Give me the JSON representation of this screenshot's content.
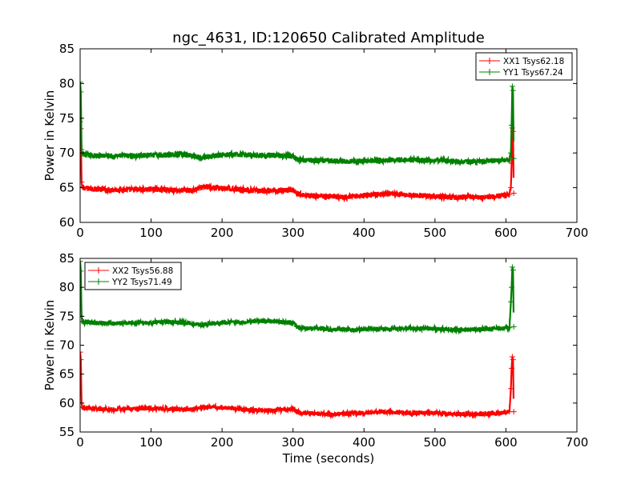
{
  "chart_data": [
    {
      "type": "line",
      "title": "ngc_4631, ID:120650 Calibrated Amplitude",
      "xlabel": "",
      "ylabel": "Power in Kelvin",
      "xlim": [
        0,
        700
      ],
      "ylim": [
        60,
        85
      ],
      "xticks": [
        0,
        100,
        200,
        300,
        400,
        500,
        600,
        700
      ],
      "yticks": [
        60,
        65,
        70,
        75,
        80,
        85
      ],
      "grid": false,
      "legend_position": "top-right",
      "series": [
        {
          "name": "XX1 Tsys62.18",
          "color": "#ff0000",
          "x": [
            0,
            1,
            2,
            3,
            5,
            10,
            20,
            40,
            60,
            80,
            100,
            120,
            140,
            160,
            170,
            180,
            200,
            220,
            240,
            260,
            280,
            300,
            305,
            310,
            330,
            350,
            370,
            390,
            410,
            430,
            450,
            470,
            490,
            510,
            530,
            550,
            570,
            590,
            605,
            607,
            608,
            609,
            610,
            611
          ],
          "y": [
            74.5,
            73.5,
            65.8,
            65.1,
            65.0,
            64.9,
            64.8,
            64.7,
            64.7,
            64.7,
            64.8,
            64.7,
            64.6,
            64.6,
            65.0,
            65.1,
            64.9,
            64.8,
            64.6,
            64.5,
            64.6,
            64.7,
            64.2,
            64.0,
            63.8,
            63.7,
            63.6,
            63.8,
            64.0,
            64.1,
            64.0,
            63.9,
            63.8,
            63.7,
            63.6,
            63.7,
            63.6,
            63.8,
            64.0,
            65.0,
            68.5,
            73.6,
            73.1,
            64.2
          ]
        },
        {
          "name": "YY1 Tsys67.24",
          "color": "#008000",
          "x": [
            0,
            1,
            2,
            3,
            5,
            10,
            20,
            40,
            60,
            80,
            100,
            120,
            140,
            160,
            170,
            180,
            200,
            220,
            240,
            260,
            280,
            300,
            305,
            310,
            330,
            350,
            370,
            390,
            410,
            430,
            450,
            470,
            490,
            510,
            530,
            550,
            570,
            590,
            605,
            607,
            608,
            609,
            610,
            611
          ],
          "y": [
            80.2,
            78.8,
            70.5,
            69.9,
            69.8,
            69.7,
            69.6,
            69.6,
            69.6,
            69.6,
            69.7,
            69.7,
            69.8,
            69.6,
            69.3,
            69.5,
            69.7,
            69.8,
            69.7,
            69.7,
            69.6,
            69.6,
            69.1,
            69.0,
            68.9,
            68.9,
            68.8,
            68.8,
            68.9,
            68.9,
            69.0,
            69.0,
            68.9,
            68.9,
            68.8,
            68.7,
            68.8,
            68.9,
            69.0,
            70.0,
            74.0,
            79.6,
            79.0,
            69.2
          ]
        }
      ]
    },
    {
      "type": "line",
      "title": "",
      "xlabel": "Time (seconds)",
      "ylabel": "Power in Kelvin",
      "xlim": [
        0,
        700
      ],
      "ylim": [
        55,
        85
      ],
      "xticks": [
        0,
        100,
        200,
        300,
        400,
        500,
        600,
        700
      ],
      "yticks": [
        55,
        60,
        65,
        70,
        75,
        80,
        85
      ],
      "grid": false,
      "legend_position": "top-left",
      "series": [
        {
          "name": "XX2 Tsys56.88",
          "color": "#ff0000",
          "x": [
            0,
            1,
            2,
            3,
            5,
            10,
            20,
            40,
            60,
            80,
            100,
            120,
            140,
            160,
            170,
            180,
            200,
            220,
            240,
            260,
            280,
            300,
            305,
            310,
            330,
            350,
            370,
            390,
            410,
            430,
            450,
            470,
            490,
            510,
            530,
            550,
            570,
            590,
            605,
            607,
            608,
            609,
            610,
            611
          ],
          "y": [
            68.8,
            67.5,
            60.0,
            59.3,
            59.2,
            59.1,
            59.0,
            58.9,
            58.9,
            59.0,
            59.1,
            59.0,
            58.9,
            58.9,
            59.2,
            59.3,
            59.2,
            59.0,
            58.8,
            58.7,
            58.8,
            59.0,
            58.5,
            58.3,
            58.2,
            58.1,
            58.1,
            58.2,
            58.4,
            58.5,
            58.4,
            58.3,
            58.3,
            58.2,
            58.1,
            58.1,
            58.1,
            58.2,
            58.5,
            62.5,
            66.0,
            68.0,
            67.5,
            58.5
          ]
        },
        {
          "name": "YY2 Tsys71.49",
          "color": "#008000",
          "x": [
            0,
            1,
            2,
            3,
            5,
            10,
            20,
            40,
            60,
            80,
            100,
            120,
            140,
            160,
            170,
            180,
            200,
            220,
            240,
            260,
            280,
            300,
            305,
            310,
            330,
            350,
            370,
            390,
            410,
            430,
            450,
            470,
            490,
            510,
            530,
            550,
            570,
            590,
            605,
            607,
            608,
            609,
            610,
            611
          ],
          "y": [
            84.5,
            82.8,
            75.0,
            74.1,
            74.0,
            73.9,
            73.9,
            73.8,
            73.8,
            73.9,
            73.9,
            74.0,
            74.0,
            73.7,
            73.5,
            73.7,
            73.9,
            74.0,
            74.1,
            74.2,
            74.0,
            73.9,
            73.3,
            73.0,
            72.9,
            72.8,
            72.7,
            72.7,
            72.8,
            72.8,
            72.9,
            72.9,
            72.9,
            72.8,
            72.7,
            72.7,
            72.8,
            72.9,
            73.0,
            77.5,
            80.0,
            83.5,
            83.0,
            73.2
          ]
        }
      ]
    }
  ]
}
